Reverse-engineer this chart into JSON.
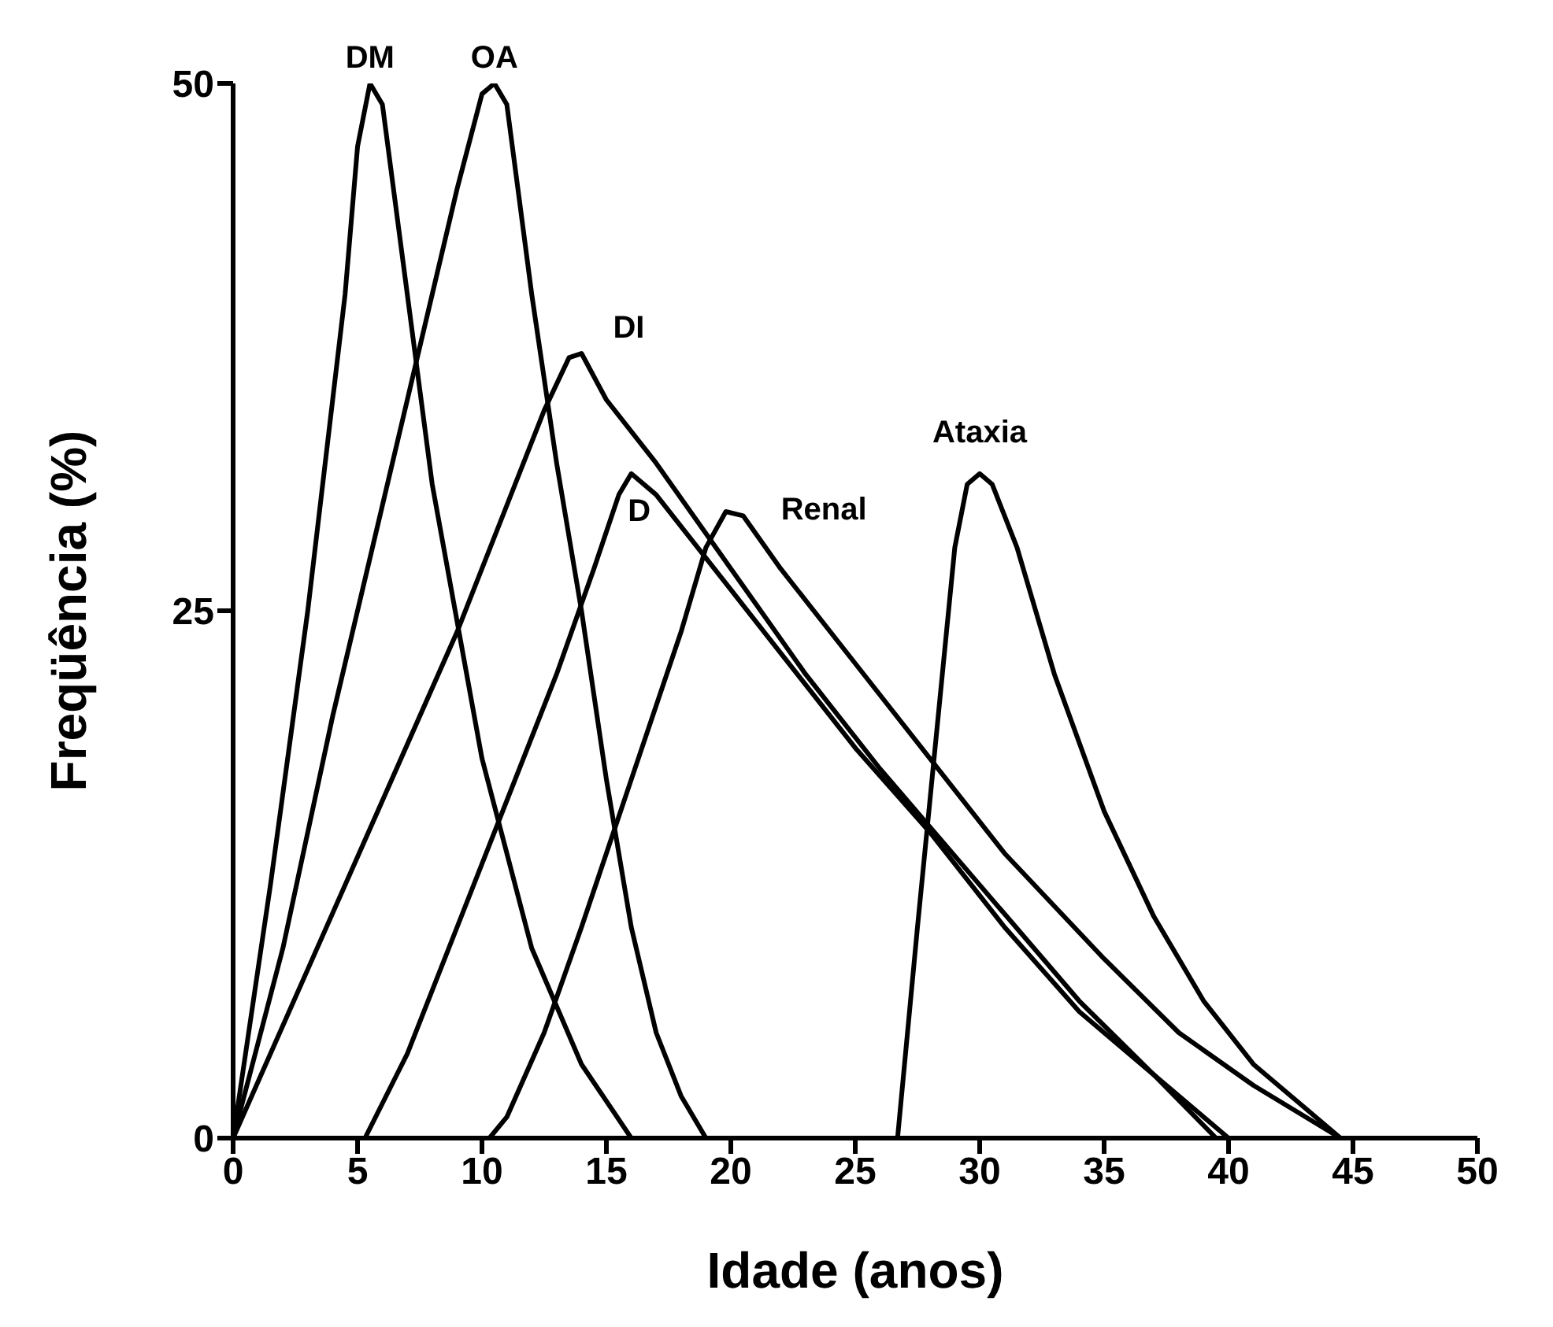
{
  "chart_data": {
    "type": "line",
    "xlabel": "Idade (anos)",
    "ylabel": "Freqüência (%)",
    "xlim": [
      0,
      50
    ],
    "xticks": [
      0,
      5,
      10,
      15,
      20,
      25,
      30,
      35,
      40,
      45,
      50
    ],
    "ylim": [
      0,
      50
    ],
    "yticks": [
      0,
      25,
      50
    ],
    "grid": false,
    "legend": false,
    "marker": "none",
    "line_style": "solid",
    "series": [
      {
        "name": "DM",
        "color": "#000000",
        "x": [
          0,
          1.5,
          3,
          4.5,
          5,
          5.5,
          6,
          7,
          8,
          10,
          12,
          14,
          16
        ],
        "values": [
          0,
          12,
          25,
          40,
          47,
          50,
          49,
          40,
          31,
          18,
          9,
          3.5,
          0
        ]
      },
      {
        "name": "OA",
        "color": "#000000",
        "x": [
          0,
          2,
          4,
          6,
          8,
          9,
          10,
          10.5,
          11,
          12,
          13,
          14,
          15,
          16,
          17,
          18,
          19
        ],
        "values": [
          0,
          9,
          20,
          30,
          40,
          45,
          49.5,
          50,
          49,
          40,
          32,
          25,
          17,
          10,
          5,
          2,
          0
        ]
      },
      {
        "name": "DI",
        "color": "#000000",
        "x": [
          0,
          3,
          6,
          9,
          11,
          12.5,
          13.5,
          14,
          15,
          17,
          20,
          23,
          26,
          30,
          34,
          37,
          40
        ],
        "values": [
          0,
          8,
          16,
          24,
          30,
          34.5,
          37,
          37.2,
          35,
          32,
          27,
          22,
          17.5,
          12,
          6.5,
          3,
          0
        ]
      },
      {
        "name": "D",
        "color": "#000000",
        "x": [
          5.3,
          7,
          9,
          11,
          13,
          14.5,
          15.5,
          16,
          17,
          18,
          20,
          22,
          25,
          28,
          31,
          34,
          37,
          39.5
        ],
        "values": [
          0,
          4,
          10,
          16,
          22,
          27,
          30.5,
          31.5,
          30.5,
          29,
          26,
          23,
          18.5,
          14.5,
          10,
          6,
          3,
          0
        ]
      },
      {
        "name": "Renal",
        "color": "#000000",
        "x": [
          10.3,
          11,
          12.5,
          14,
          16,
          18,
          19,
          19.8,
          20.5,
          22,
          25,
          28,
          31,
          35,
          38,
          41,
          44.5
        ],
        "values": [
          0,
          1,
          5,
          10,
          17,
          24,
          28,
          29.7,
          29.5,
          27,
          22.5,
          18,
          13.5,
          8.5,
          5,
          2.5,
          0
        ]
      },
      {
        "name": "Ataxia",
        "color": "#000000",
        "x": [
          26.7,
          27.5,
          28.5,
          29,
          29.5,
          30,
          30.5,
          31.5,
          33,
          35,
          37,
          39,
          41,
          43,
          44.5
        ],
        "values": [
          0,
          10,
          22,
          28,
          31,
          31.5,
          31,
          28,
          22,
          15.5,
          10.5,
          6.5,
          3.5,
          1.5,
          0
        ]
      }
    ]
  }
}
